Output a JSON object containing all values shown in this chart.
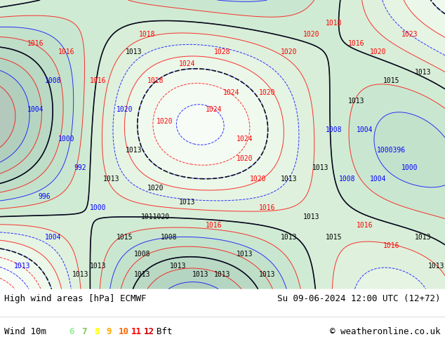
{
  "title_left": "High wind areas [hPa] ECMWF",
  "title_right": "Su 09-06-2024 12:00 UTC (12+72)",
  "legend_label": "Wind 10m",
  "legend_values": [
    "6",
    "7",
    "8",
    "9",
    "10",
    "11",
    "12",
    "Bft"
  ],
  "legend_colors": [
    "#90ee90",
    "#7ec850",
    "#ffff00",
    "#ffa500",
    "#ff6600",
    "#ff0000",
    "#cc0000",
    "#000000"
  ],
  "copyright": "© weatheronline.co.uk",
  "bg_color": "#ffffff",
  "map_bg": "#d0e8f0",
  "bottom_bar_color": "#ffffff",
  "bottom_bar_height": 0.08,
  "fig_width": 6.34,
  "fig_height": 4.9,
  "dpi": 100,
  "map_image_placeholder": true,
  "font_size_title": 9,
  "font_size_legend": 9,
  "font_size_copyright": 9,
  "text_color": "#000000",
  "legend_number_colors": [
    "#90ee90",
    "#7ec850",
    "#ffff00",
    "#ffa500",
    "#ff6600",
    "#ff0000",
    "#cc0000"
  ],
  "bft_color": "#000000"
}
